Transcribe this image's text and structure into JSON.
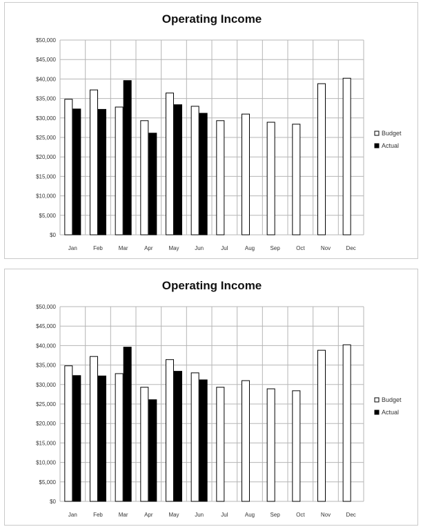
{
  "chart_data": [
    {
      "type": "bar",
      "title": "Operating Income",
      "categories": [
        "Jan",
        "Feb",
        "Mar",
        "Apr",
        "May",
        "Jun",
        "Jul",
        "Aug",
        "Sep",
        "Oct",
        "Nov",
        "Dec"
      ],
      "series": [
        {
          "name": "Budget",
          "color": "#ffffff",
          "values": [
            34800,
            37200,
            32800,
            29300,
            36400,
            33000,
            29300,
            31000,
            28900,
            28400,
            38800,
            40200
          ]
        },
        {
          "name": "Actual",
          "color": "#000000",
          "values": [
            32300,
            32200,
            39600,
            26100,
            33400,
            31200,
            null,
            null,
            null,
            null,
            null,
            null
          ]
        }
      ],
      "yticks": [
        "$0",
        "$5,000",
        "$10,000",
        "$15,000",
        "$20,000",
        "$25,000",
        "$30,000",
        "$35,000",
        "$40,000",
        "$45,000",
        "$50,000"
      ],
      "ylim": [
        0,
        50000
      ],
      "grid": true,
      "legend_position": "right"
    },
    {
      "type": "bar",
      "title": "Operating Income",
      "categories": [
        "Jan",
        "Feb",
        "Mar",
        "Apr",
        "May",
        "Jun",
        "Jul",
        "Aug",
        "Sep",
        "Oct",
        "Nov",
        "Dec"
      ],
      "series": [
        {
          "name": "Budget",
          "color": "#ffffff",
          "values": [
            34800,
            37200,
            32800,
            29300,
            36400,
            33000,
            29300,
            31000,
            28900,
            28400,
            38800,
            40200
          ]
        },
        {
          "name": "Actual",
          "color": "#000000",
          "values": [
            32300,
            32200,
            39600,
            26100,
            33400,
            31200,
            null,
            null,
            null,
            null,
            null,
            null
          ]
        }
      ],
      "yticks": [
        "$0",
        "$5,000",
        "$10,000",
        "$15,000",
        "$20,000",
        "$25,000",
        "$30,000",
        "$35,000",
        "$40,000",
        "$45,000",
        "$50,000"
      ],
      "ylim": [
        0,
        50000
      ],
      "grid": true,
      "legend_position": "right"
    }
  ]
}
